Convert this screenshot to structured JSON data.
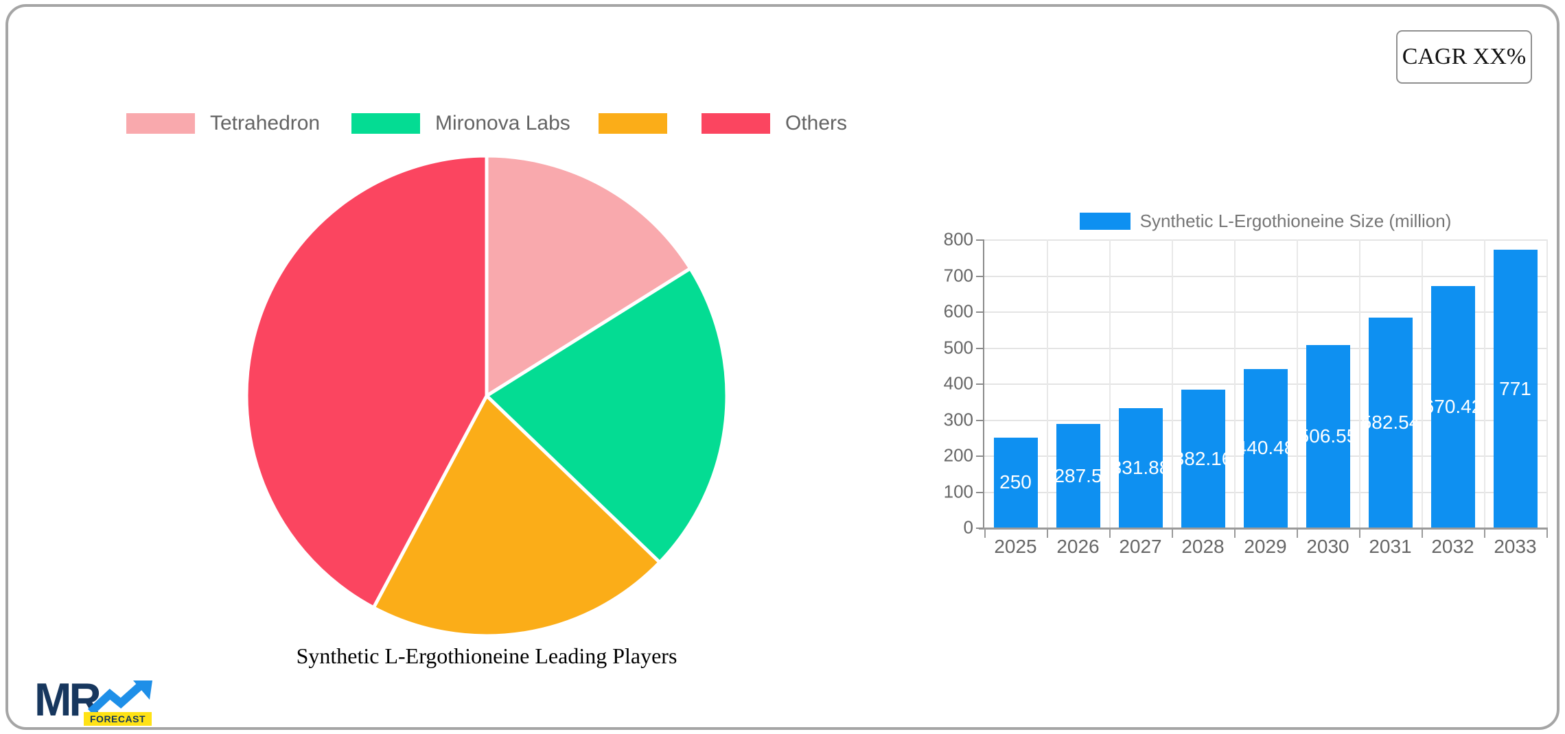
{
  "card": {
    "cagr_label": "CAGR XX%"
  },
  "pie_section": {
    "title": "Synthetic L-Ergothioneine Leading Players",
    "legend": [
      {
        "label": "Tetrahedron",
        "color": "#f9a9ad"
      },
      {
        "label": "Mironova Labs",
        "color": "#04dc93"
      },
      {
        "label": "",
        "color": "#fbad18"
      },
      {
        "label": "Others",
        "color": "#fb4560"
      }
    ]
  },
  "bar_section": {
    "legend_label": "Synthetic L-Ergothioneine Size (million)",
    "bar_color": "#0e90f1"
  },
  "logo": {
    "mr": "MR",
    "forecast": "FORECAST"
  },
  "chart_data": [
    {
      "type": "pie",
      "title": "Synthetic L-Ergothioneine Leading Players",
      "labels": [
        "Tetrahedron",
        "Mironova Labs",
        "",
        "Others"
      ],
      "values_pct": [
        16.1,
        21.1,
        20.6,
        42.2
      ],
      "colors": [
        "#f9a9ad",
        "#04dc93",
        "#fbad18",
        "#fb4560"
      ],
      "start_angle_deg": 0,
      "direction": "clockwise",
      "legend_position": "top",
      "slice_border_color": "#ffffff"
    },
    {
      "type": "bar",
      "title": "Synthetic L-Ergothioneine Size (million)",
      "categories": [
        "2025",
        "2026",
        "2027",
        "2028",
        "2029",
        "2030",
        "2031",
        "2032",
        "2033"
      ],
      "values": [
        250,
        287.5,
        331.88,
        382.16,
        440.48,
        506.55,
        582.54,
        670.42,
        771
      ],
      "bar_labels": [
        "250",
        "287.5",
        "331.88",
        "382.16",
        "440.48",
        "506.55",
        "582.54",
        "670.42",
        "771"
      ],
      "xlabel": "",
      "ylabel": "",
      "ylim": [
        0,
        800
      ],
      "yticks": [
        0,
        100,
        200,
        300,
        400,
        500,
        600,
        700,
        800
      ],
      "grid": true,
      "bar_color": "#0e90f1",
      "value_label_color": "#ffffff",
      "legend_position": "top"
    }
  ]
}
